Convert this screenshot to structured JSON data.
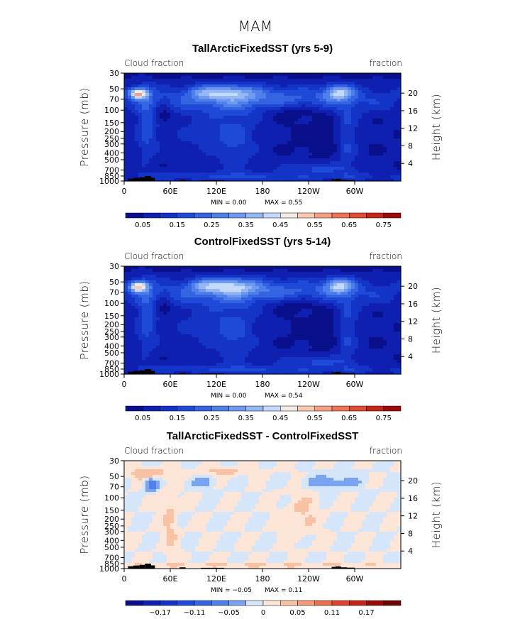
{
  "title": "MAM",
  "chart_data": [
    {
      "type": "heatmap",
      "title": "TallArcticFixedSST (yrs 5-9)",
      "left_label": "Cloud fraction",
      "right_label": "fraction",
      "ylabel": "Pressure (mb)",
      "y2label": "Height (km)",
      "x_ticks": [
        "0",
        "60E",
        "120E",
        "180",
        "120W",
        "60W"
      ],
      "x_tick_lon": [
        0,
        60,
        120,
        180,
        240,
        300
      ],
      "xlim": [
        0,
        360
      ],
      "y_ticks": [
        "30",
        "50",
        "70",
        "100",
        "150",
        "200",
        "250",
        "300",
        "400",
        "500",
        "700",
        "850",
        "1000"
      ],
      "y_tick_p": [
        30,
        50,
        70,
        100,
        150,
        200,
        250,
        300,
        400,
        500,
        700,
        850,
        1000
      ],
      "ylim": [
        30,
        1000
      ],
      "y2_ticks": [
        "20",
        "16",
        "12",
        "8",
        "4"
      ],
      "y2_tick_km": [
        20,
        16,
        12,
        8,
        4
      ],
      "min_text": "MIN =    0.00",
      "max_text": "MAX =    0.55",
      "colorbar_labels": [
        "0.05",
        "0.15",
        "0.25",
        "0.35",
        "0.45",
        "0.55",
        "0.65",
        "0.75"
      ],
      "levels": [
        0.0,
        0.05,
        0.1,
        0.15,
        0.2,
        0.25,
        0.3,
        0.35,
        0.4,
        0.45,
        0.5,
        0.55,
        0.6,
        0.65,
        0.7,
        0.75,
        0.8
      ],
      "field": "cloud"
    },
    {
      "type": "heatmap",
      "title": "ControlFixedSST (yrs 5-14)",
      "left_label": "Cloud fraction",
      "right_label": "fraction",
      "ylabel": "Pressure (mb)",
      "y2label": "Height (km)",
      "x_ticks": [
        "0",
        "60E",
        "120E",
        "180",
        "120W",
        "60W"
      ],
      "x_tick_lon": [
        0,
        60,
        120,
        180,
        240,
        300
      ],
      "xlim": [
        0,
        360
      ],
      "y_ticks": [
        "30",
        "50",
        "70",
        "100",
        "150",
        "200",
        "250",
        "300",
        "400",
        "500",
        "700",
        "850",
        "1000"
      ],
      "y_tick_p": [
        30,
        50,
        70,
        100,
        150,
        200,
        250,
        300,
        400,
        500,
        700,
        850,
        1000
      ],
      "ylim": [
        30,
        1000
      ],
      "y2_ticks": [
        "20",
        "16",
        "12",
        "8",
        "4"
      ],
      "y2_tick_km": [
        20,
        16,
        12,
        8,
        4
      ],
      "min_text": "MIN =    0.00",
      "max_text": "MAX =    0.54",
      "colorbar_labels": [
        "0.05",
        "0.15",
        "0.25",
        "0.35",
        "0.45",
        "0.55",
        "0.65",
        "0.75"
      ],
      "levels": [
        0.0,
        0.05,
        0.1,
        0.15,
        0.2,
        0.25,
        0.3,
        0.35,
        0.4,
        0.45,
        0.5,
        0.55,
        0.6,
        0.65,
        0.7,
        0.75,
        0.8
      ],
      "field": "cloud"
    },
    {
      "type": "heatmap",
      "title": "TallArcticFixedSST - ControlFixedSST",
      "left_label": "Cloud fraction",
      "right_label": "fraction",
      "ylabel": "Pressure (mb)",
      "y2label": "Height (km)",
      "x_ticks": [
        "0",
        "60E",
        "120E",
        "180",
        "120W",
        "60W"
      ],
      "x_tick_lon": [
        0,
        60,
        120,
        180,
        240,
        300
      ],
      "xlim": [
        0,
        360
      ],
      "y_ticks": [
        "30",
        "50",
        "70",
        "100",
        "150",
        "200",
        "250",
        "300",
        "400",
        "500",
        "700",
        "850",
        "1000"
      ],
      "y_tick_p": [
        30,
        50,
        70,
        100,
        150,
        200,
        250,
        300,
        400,
        500,
        700,
        850,
        1000
      ],
      "ylim": [
        30,
        1000
      ],
      "y2_ticks": [
        "20",
        "16",
        "12",
        "8",
        "4"
      ],
      "y2_tick_km": [
        20,
        16,
        12,
        8,
        4
      ],
      "min_text": "MIN =   −0.05",
      "max_text": "MAX =    0.11",
      "colorbar_labels": [
        "−0.17",
        "−0.11",
        "−0.05",
        "0",
        "0.05",
        "0.11",
        "0.17"
      ],
      "levels": [
        -0.23,
        -0.2,
        -0.17,
        -0.14,
        -0.11,
        -0.08,
        -0.05,
        -0.02,
        0.0,
        0.02,
        0.05,
        0.08,
        0.11,
        0.14,
        0.17,
        0.2,
        0.23
      ],
      "field": "diff"
    }
  ],
  "colormaps": {
    "cloud": [
      "#0a0f8c",
      "#0f1fb0",
      "#1434c8",
      "#1f4ad8",
      "#3464e2",
      "#4f80ea",
      "#6f9af0",
      "#95b8f5",
      "#c5dafa",
      "#f3ece6",
      "#f9c9b3",
      "#f5a084",
      "#ee7456",
      "#e24b32",
      "#c42618",
      "#9a0c0c"
    ],
    "diff": [
      "#0a0f8c",
      "#0f1fb0",
      "#1434c8",
      "#1f4ad8",
      "#3464e2",
      "#4f80ea",
      "#7aa4f1",
      "#d5e6fb",
      "#fde5d7",
      "#f9c2a5",
      "#f39a78",
      "#eb6e4e",
      "#dd4530",
      "#c22517",
      "#9a0c0c",
      "#6d0505"
    ]
  }
}
